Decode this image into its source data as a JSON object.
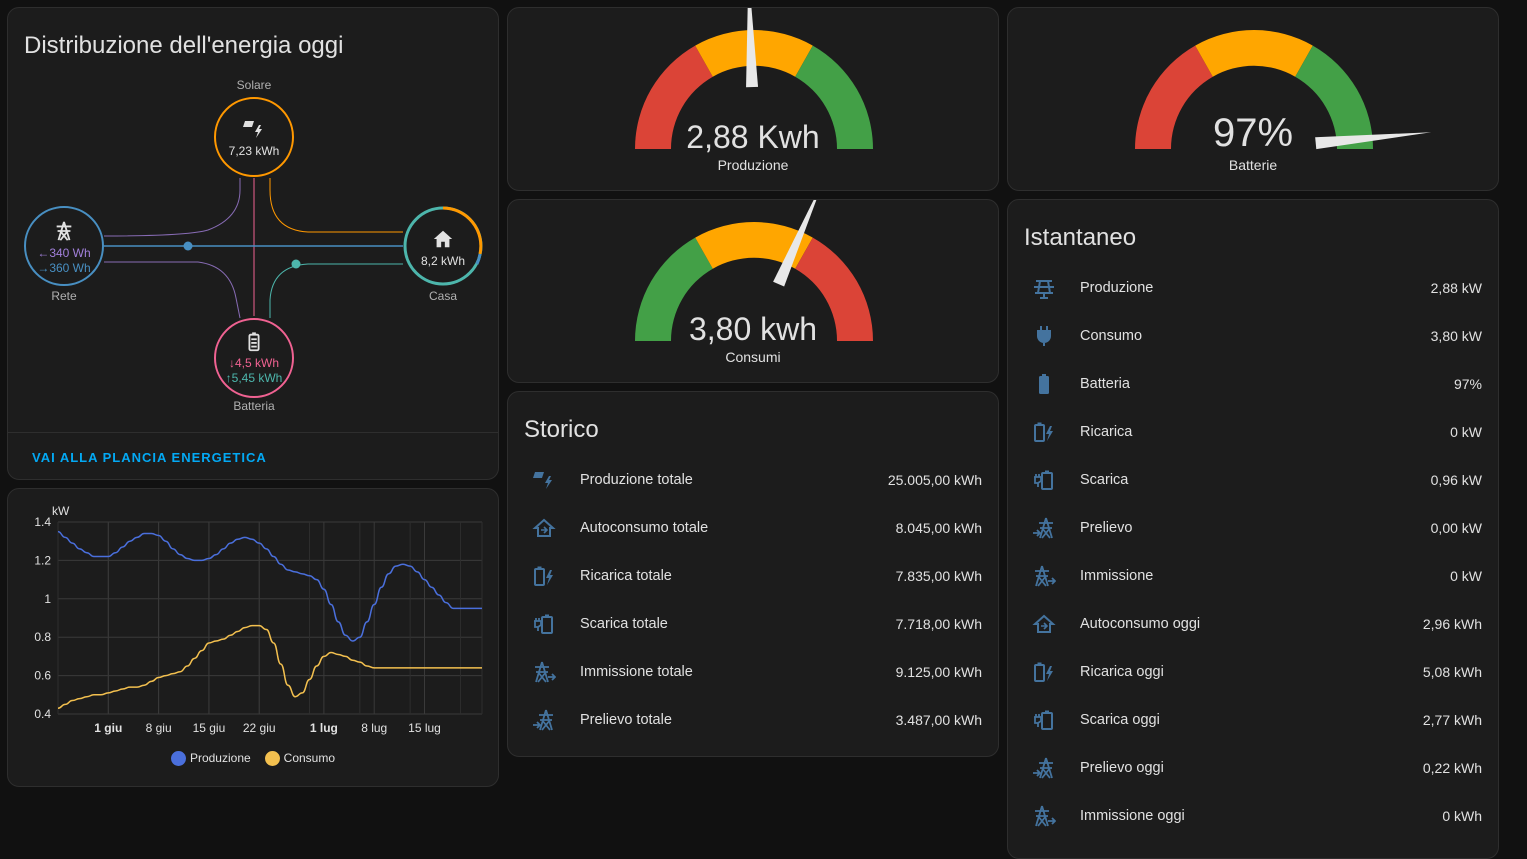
{
  "colors": {
    "solar": "#ff9800",
    "grid": "#488fc2",
    "battery_in": "#f06292",
    "battery_out": "#4db6ac",
    "grid_return": "#a280db",
    "home": "#4db6ac",
    "production": "#4a6fdc",
    "consumption": "#f3c04f",
    "icon": "#44739e",
    "accent": "#03a9f4",
    "red": "#db4437",
    "amber": "#ffa600",
    "green": "#43a047"
  },
  "energy_flow": {
    "title": "Distribuzione dell'energia oggi",
    "solar": {
      "label": "Solare",
      "value": "7,23 kWh",
      "icon": "solar-power-icon"
    },
    "grid": {
      "label": "Rete",
      "export": "340 Wh",
      "import": "360 Wh",
      "icon": "transmission-tower-icon"
    },
    "home": {
      "label": "Casa",
      "value": "8,2 kWh",
      "icon": "home-icon"
    },
    "battery": {
      "label": "Batteria",
      "in": "4,5 kWh",
      "out": "5,45 kWh",
      "icon": "battery-icon"
    },
    "link": "VAI ALLA PLANCIA ENERGETICA"
  },
  "gauges": {
    "production": {
      "value": "2,88 Kwh",
      "name": "Produzione",
      "level": 0.49
    },
    "battery": {
      "value": "97%",
      "name": "Batterie",
      "level": 0.97
    },
    "consumption": {
      "value": "3,80 kwh",
      "name": "Consumi",
      "level": 0.63
    }
  },
  "chart_data": {
    "type": "line",
    "ylabel": "kW",
    "ylim": [
      0.4,
      1.4
    ],
    "yticks": [
      "0.4",
      "0.6",
      "0.8",
      "1",
      "1.2",
      "1.4"
    ],
    "xticks": [
      "1 giu",
      "8 giu",
      "15 giu",
      "22 giu",
      "1 lug",
      "8 lug",
      "15 lug"
    ],
    "xticks_bold": [
      true,
      false,
      false,
      false,
      true,
      false,
      false
    ],
    "x": [
      "25 mag",
      "26 mag",
      "27 mag",
      "28 mag",
      "29 mag",
      "30 mag",
      "31 mag",
      "1 giu",
      "2 giu",
      "3 giu",
      "4 giu",
      "5 giu",
      "6 giu",
      "7 giu",
      "8 giu",
      "9 giu",
      "10 giu",
      "11 giu",
      "12 giu",
      "13 giu",
      "14 giu",
      "15 giu",
      "16 giu",
      "17 giu",
      "18 giu",
      "19 giu",
      "20 giu",
      "21 giu",
      "22 giu",
      "23 giu",
      "24 giu",
      "25 giu",
      "26 giu",
      "27 giu",
      "28 giu",
      "29 giu",
      "30 giu",
      "1 lug",
      "2 lug",
      "3 lug",
      "4 lug",
      "5 lug",
      "6 lug",
      "7 lug",
      "8 lug",
      "9 lug",
      "10 lug",
      "11 lug",
      "12 lug",
      "13 lug",
      "14 lug",
      "15 lug",
      "16 lug",
      "17 lug",
      "18 lug",
      "19 lug",
      "20 lug",
      "21 lug",
      "22 lug",
      "23 lug"
    ],
    "series": [
      {
        "name": "Produzione",
        "values": [
          1.35,
          1.32,
          1.29,
          1.26,
          1.24,
          1.22,
          1.22,
          1.22,
          1.24,
          1.27,
          1.3,
          1.32,
          1.34,
          1.34,
          1.33,
          1.3,
          1.26,
          1.23,
          1.21,
          1.2,
          1.2,
          1.21,
          1.23,
          1.26,
          1.29,
          1.31,
          1.32,
          1.31,
          1.29,
          1.26,
          1.22,
          1.18,
          1.15,
          1.14,
          1.13,
          1.12,
          1.1,
          1.05,
          0.97,
          0.88,
          0.81,
          0.78,
          0.8,
          0.88,
          0.97,
          1.06,
          1.13,
          1.17,
          1.18,
          1.17,
          1.14,
          1.1,
          1.06,
          1.02,
          0.98,
          0.95,
          0.95,
          0.95,
          0.95,
          0.95
        ]
      },
      {
        "name": "Consumo",
        "values": [
          0.43,
          0.45,
          0.47,
          0.48,
          0.49,
          0.5,
          0.5,
          0.51,
          0.52,
          0.53,
          0.54,
          0.54,
          0.55,
          0.57,
          0.59,
          0.6,
          0.61,
          0.62,
          0.65,
          0.69,
          0.73,
          0.77,
          0.78,
          0.79,
          0.81,
          0.83,
          0.85,
          0.86,
          0.86,
          0.84,
          0.77,
          0.66,
          0.55,
          0.49,
          0.51,
          0.58,
          0.65,
          0.7,
          0.72,
          0.71,
          0.7,
          0.68,
          0.67,
          0.65,
          0.64,
          0.64,
          0.64,
          0.64,
          0.64,
          0.64,
          0.64,
          0.64,
          0.64,
          0.64,
          0.64,
          0.64,
          0.64,
          0.64,
          0.64,
          0.64
        ]
      }
    ]
  },
  "storico": {
    "title": "Storico",
    "rows": [
      {
        "icon": "solar-power-icon",
        "label": "Produzione totale",
        "value": "25.005,00 kWh"
      },
      {
        "icon": "home-import-icon",
        "label": "Autoconsumo totale",
        "value": "8.045,00 kWh"
      },
      {
        "icon": "battery-charging-icon",
        "label": "Ricarica totale",
        "value": "7.835,00 kWh"
      },
      {
        "icon": "battery-discharge-icon",
        "label": "Scarica totale",
        "value": "7.718,00 kWh"
      },
      {
        "icon": "transmission-tower-export-icon",
        "label": "Immissione totale",
        "value": "9.125,00 kWh"
      },
      {
        "icon": "transmission-tower-import-icon",
        "label": "Prelievo totale",
        "value": "3.487,00 kWh"
      }
    ]
  },
  "istantaneo": {
    "title": "Istantaneo",
    "rows": [
      {
        "icon": "solar-panel-icon",
        "label": "Produzione",
        "value": "2,88 kW"
      },
      {
        "icon": "power-plug-icon",
        "label": "Consumo",
        "value": "3,80 kW"
      },
      {
        "icon": "battery-icon",
        "label": "Batteria",
        "value": "97%"
      },
      {
        "icon": "battery-charging-icon",
        "label": "Ricarica",
        "value": "0 kW"
      },
      {
        "icon": "battery-discharge-icon",
        "label": "Scarica",
        "value": "0,96 kW"
      },
      {
        "icon": "transmission-tower-import-icon",
        "label": "Prelievo",
        "value": "0,00 kW"
      },
      {
        "icon": "transmission-tower-export-icon",
        "label": "Immissione",
        "value": "0 kW"
      },
      {
        "icon": "home-import-icon",
        "label": "Autoconsumo oggi",
        "value": "2,96 kWh"
      },
      {
        "icon": "battery-charging-icon",
        "label": "Ricarica oggi",
        "value": "5,08 kWh"
      },
      {
        "icon": "battery-discharge-icon",
        "label": "Scarica oggi",
        "value": "2,77 kWh"
      },
      {
        "icon": "transmission-tower-import-icon",
        "label": "Prelievo oggi",
        "value": "0,22 kWh"
      },
      {
        "icon": "transmission-tower-export-icon",
        "label": "Immissione oggi",
        "value": "0 kWh"
      }
    ]
  }
}
